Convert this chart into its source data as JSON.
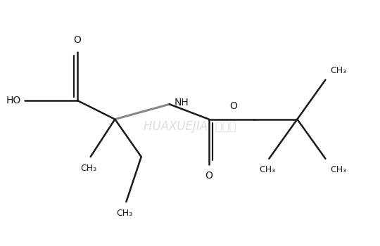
{
  "background_color": "#ffffff",
  "line_color": "#1a1a1a",
  "text_color": "#1a1a1a",
  "watermark_color": "#cccccc",
  "bond_lw": 1.8,
  "wedge_color": "#888888",
  "font_size": 10,
  "sub_font_size": 9,
  "C1x": 2.2,
  "C1y": 5.8,
  "O_up_x": 2.2,
  "O_up_y": 7.1,
  "OH_x": 0.8,
  "OH_y": 5.8,
  "Ca_x": 3.2,
  "Ca_y": 5.3,
  "NH_x": 4.65,
  "NH_y": 5.7,
  "CH3a_x": 2.55,
  "CH3a_y": 4.3,
  "CH2_x": 3.9,
  "CH2_y": 4.3,
  "CH3e_x": 3.5,
  "CH3e_y": 3.1,
  "Cc_x": 5.7,
  "Cc_y": 5.3,
  "O_down_x": 5.7,
  "O_down_y": 4.1,
  "Oe_x": 6.9,
  "Oe_y": 5.3,
  "Ct_x": 8.05,
  "Ct_y": 5.3,
  "CH3t_x": 8.8,
  "CH3t_y": 6.35,
  "CH3l_x": 7.3,
  "CH3l_y": 4.25,
  "CH3r_x": 8.8,
  "CH3r_y": 4.25,
  "xlim": [
    0.2,
    10.2
  ],
  "ylim": [
    2.5,
    7.9
  ]
}
